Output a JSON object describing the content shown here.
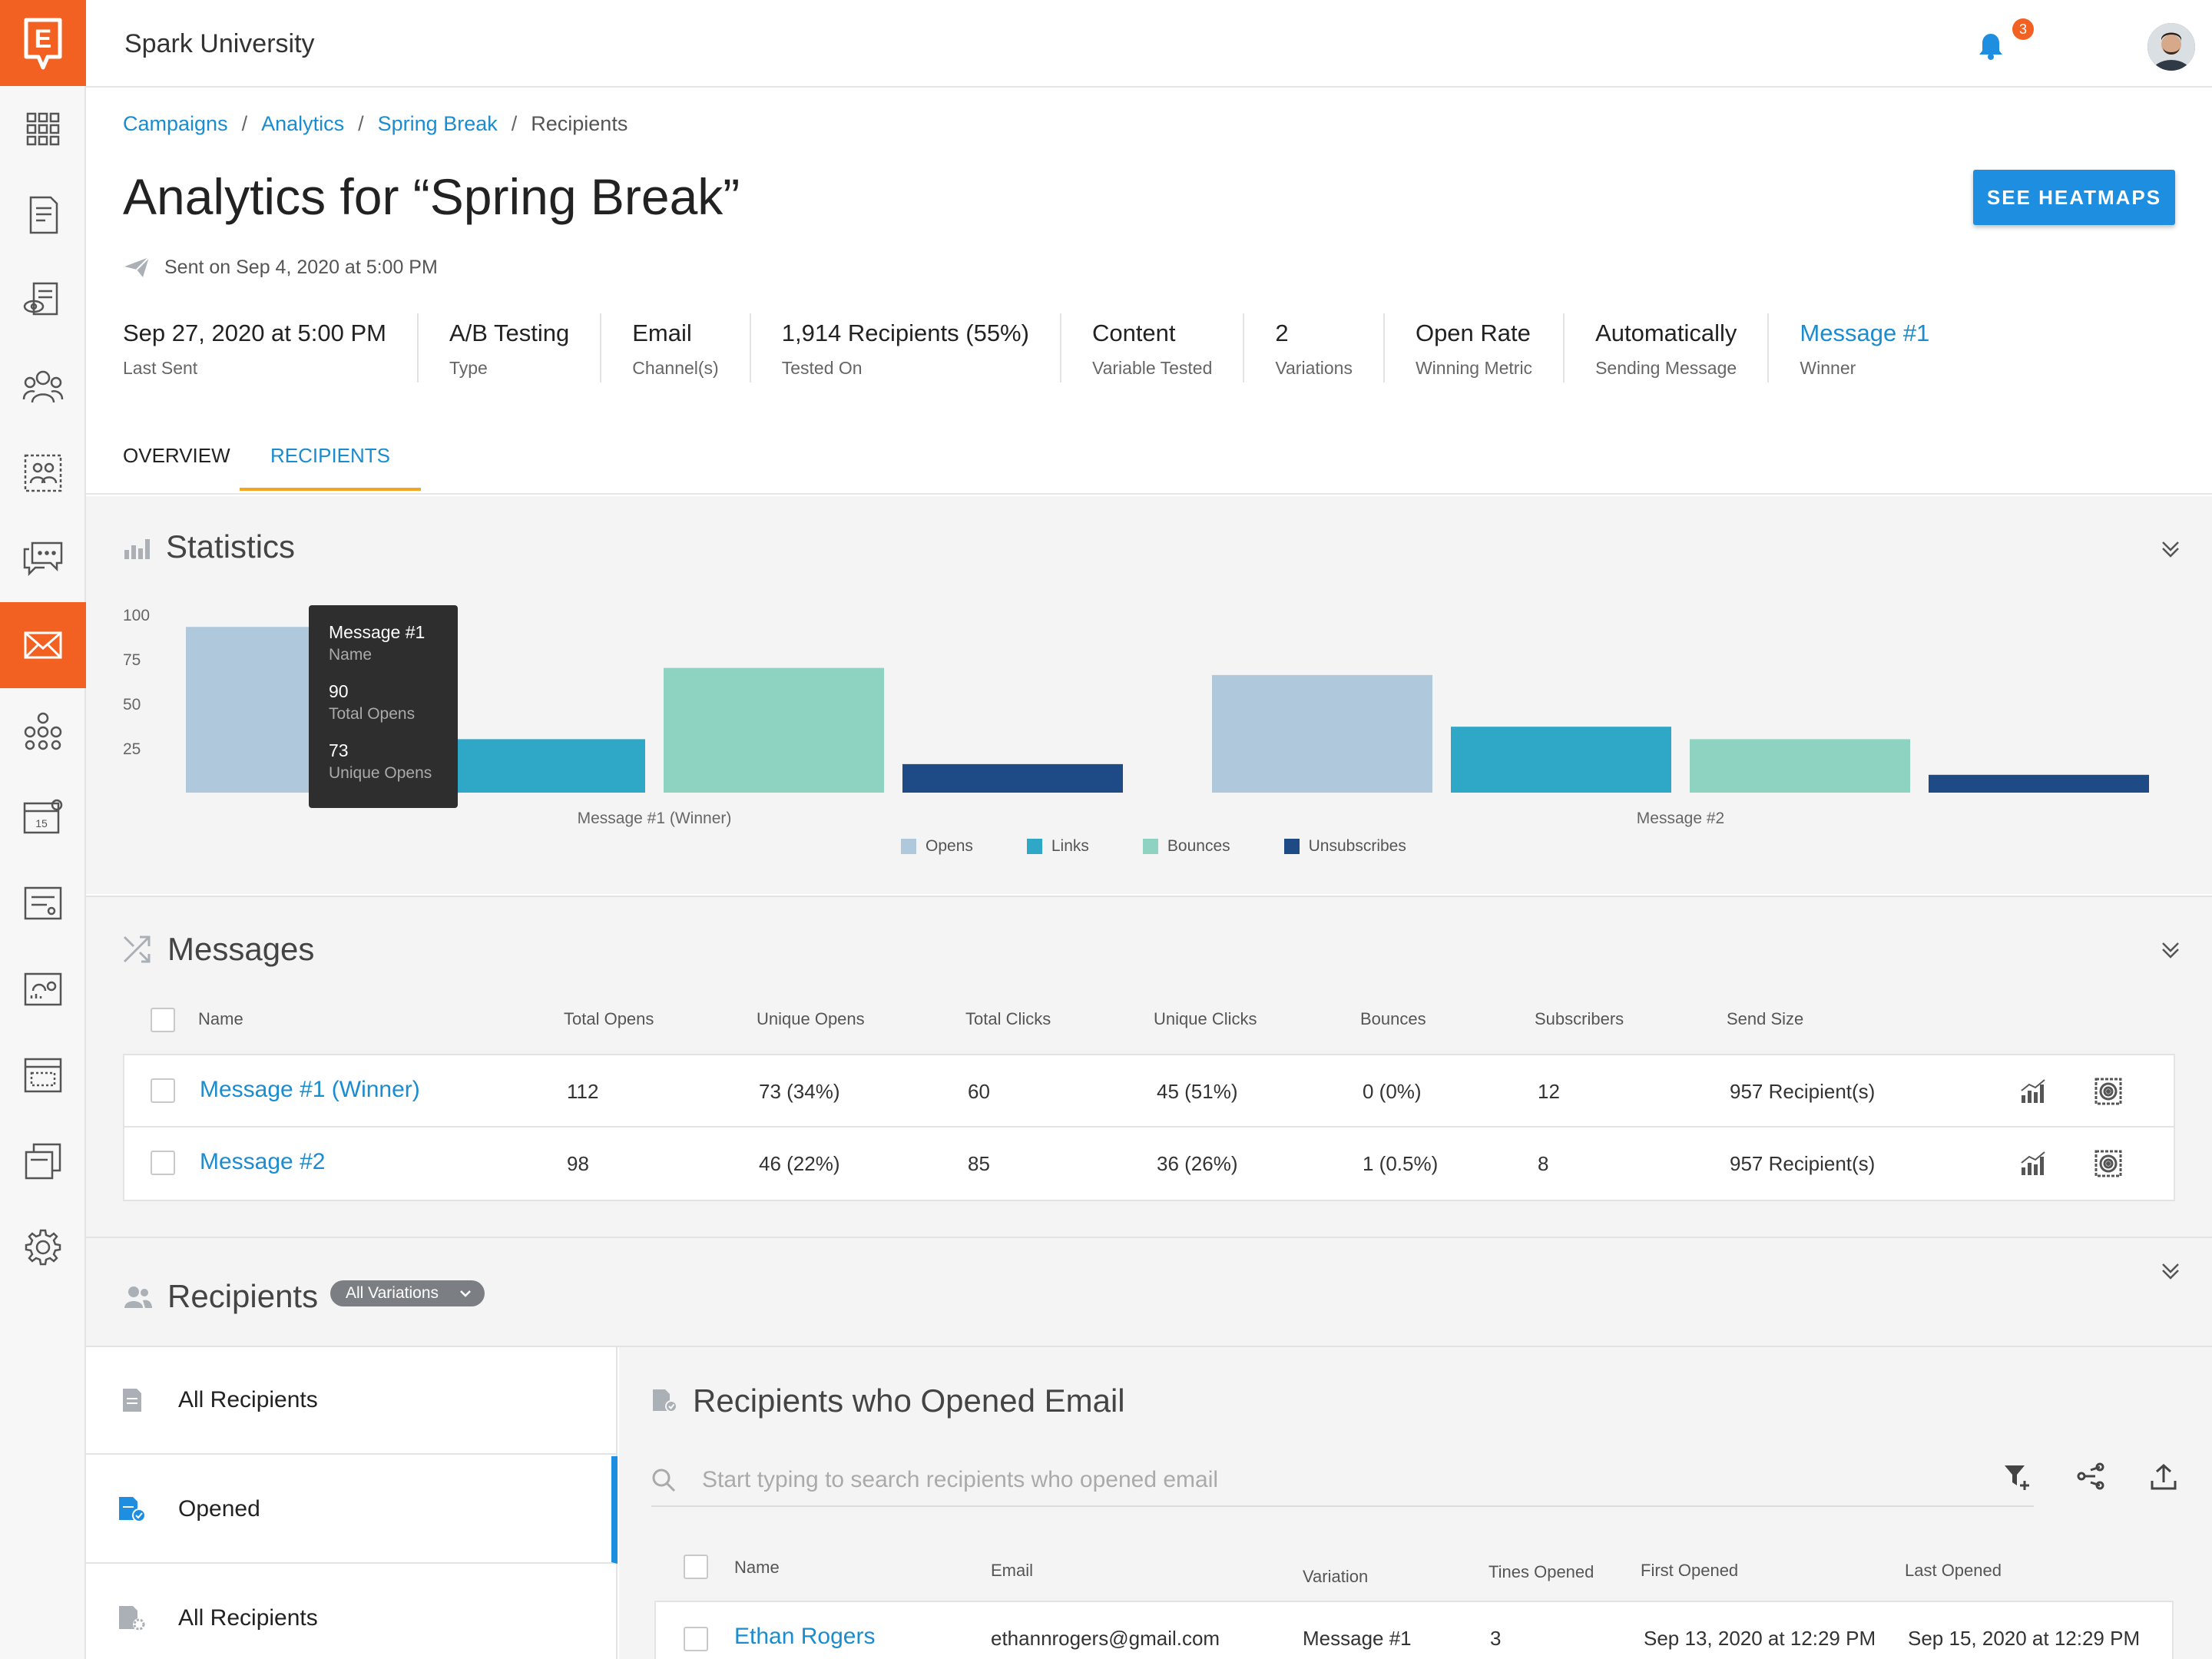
{
  "app": {
    "title": "Spark University",
    "logo_letter": "E",
    "notification_count": "3"
  },
  "breadcrumb": [
    {
      "label": "Campaigns"
    },
    {
      "label": "Analytics"
    },
    {
      "label": "Spring Break"
    },
    {
      "label": "Recipients"
    }
  ],
  "page": {
    "title": "Analytics for “Spring Break”",
    "sent_info": "Sent on Sep 4, 2020 at 5:00 PM",
    "heatmaps_button": "SEE HEATMAPS"
  },
  "meta": [
    {
      "value": "Sep 27, 2020 at 5:00 PM",
      "label": "Last Sent"
    },
    {
      "value": "A/B Testing",
      "label": "Type"
    },
    {
      "value": "Email",
      "label": "Channel(s)"
    },
    {
      "value": "1,914 Recipients (55%)",
      "label": "Tested On"
    },
    {
      "value": "Content",
      "label": "Variable Tested"
    },
    {
      "value": "2",
      "label": "Variations"
    },
    {
      "value": "Open Rate",
      "label": "Winning Metric"
    },
    {
      "value": "Automatically",
      "label": "Sending Message"
    },
    {
      "value": "Message #1",
      "label": "Winner"
    }
  ],
  "tabs": [
    {
      "label": "OVERVIEW"
    },
    {
      "label": "RECIPIENTS"
    }
  ],
  "statistics": {
    "title": "Statistics"
  },
  "chart_data": {
    "type": "bar",
    "title": "Statistics",
    "categories": [
      "Message #1 (Winner)",
      "Message #2"
    ],
    "series": [
      {
        "name": "Opens",
        "color": "#b0c8dc",
        "values": [
          93,
          66
        ]
      },
      {
        "name": "Links",
        "color": "#2ea8c6",
        "values": [
          30,
          37
        ]
      },
      {
        "name": "Bounces",
        "color": "#8ed3c1",
        "values": [
          70,
          30
        ]
      },
      {
        "name": "Unsubscribes",
        "color": "#1e4a86",
        "values": [
          16,
          10
        ]
      }
    ],
    "ylim": [
      0,
      100
    ],
    "yticks": [
      "100",
      "75",
      "50",
      "25"
    ],
    "legend": "bottom",
    "tooltip": {
      "title": "Message #1",
      "title_label": "Name",
      "total_opens": "90",
      "total_opens_label": "Total Opens",
      "unique_opens": "73",
      "unique_opens_label": "Unique Opens"
    }
  },
  "messages": {
    "title": "Messages",
    "columns": [
      "Name",
      "Total Opens",
      "Unique Opens",
      "Total Clicks",
      "Unique Clicks",
      "Bounces",
      "Subscribers",
      "Send Size"
    ],
    "rows": [
      {
        "name": "Message #1 (Winner)",
        "total_opens": "112",
        "unique_opens": "73 (34%)",
        "total_clicks": "60",
        "unique_clicks": "45 (51%)",
        "bounces": "0 (0%)",
        "subscribers": "12",
        "send_size": "957 Recipient(s)"
      },
      {
        "name": "Message #2",
        "total_opens": "98",
        "unique_opens": "46 (22%)",
        "total_clicks": "85",
        "unique_clicks": "36 (26%)",
        "bounces": "1 (0.5%)",
        "subscribers": "8",
        "send_size": "957 Recipient(s)"
      }
    ]
  },
  "recipients": {
    "title": "Recipients",
    "filter": "All Variations",
    "side_items": [
      {
        "label": "All Recipients"
      },
      {
        "label": "Opened"
      },
      {
        "label": "All Recipients"
      }
    ],
    "panel_title": "Recipients who Opened Email",
    "search_placeholder": "Start typing to search recipients who opened email",
    "columns": [
      "Name",
      "Email",
      "Variation",
      "Tines Opened",
      "First Opened",
      "Last Opened"
    ],
    "rows": [
      {
        "name": "Ethan Rogers",
        "email": "ethannrogers@gmail.com",
        "variation": "Message #1",
        "times": "3",
        "first": "Sep 13, 2020 at 12:29 PM",
        "last": "Sep 15, 2020 at 12:29 PM"
      }
    ]
  }
}
